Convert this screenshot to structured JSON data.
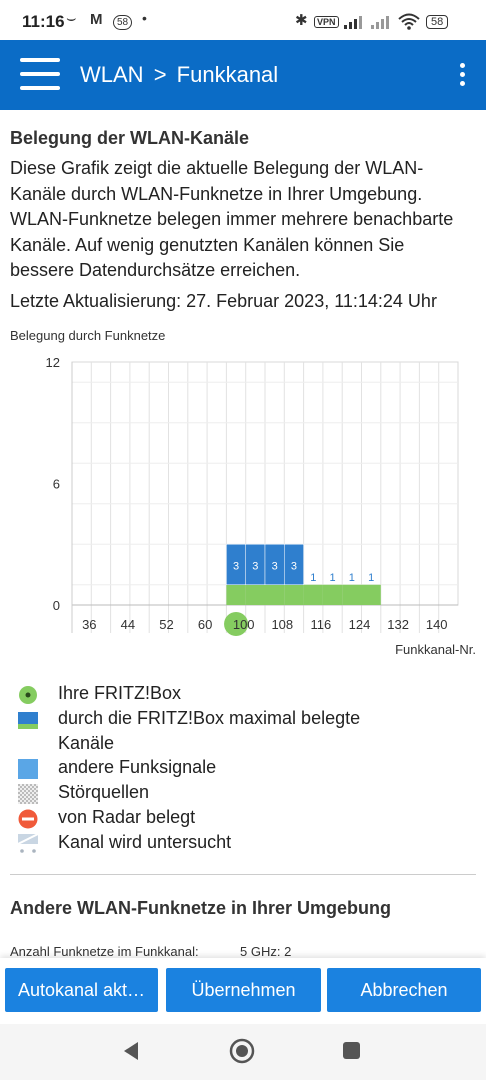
{
  "status_bar": {
    "time": "11:16",
    "badge": "58",
    "vpn": "VPN",
    "battery": "58"
  },
  "header": {
    "title": "WLAN",
    "subtitle": "Funkkanal",
    "separator": ">"
  },
  "section": {
    "heading": "Belegung der WLAN-Kanäle",
    "description_lines": [
      "Diese Grafik zeigt die aktuelle Belegung der WLAN-",
      "Kanäle durch WLAN-Funknetze in Ihrer Umgebung.",
      "WLAN-Funknetze belegen immer mehrere benachbarte",
      "Kanäle. Auf wenig genutzten Kanälen können Sie",
      "bessere Datendurchsätze erreichen."
    ],
    "last_update": "Letzte Aktualisierung: 27. Februar 2023, 11:14:24 Uhr",
    "chart_caption": "Belegung durch Funknetze"
  },
  "chart_data": {
    "type": "bar",
    "ylabel": "Belegung durch Funknetze",
    "xlabel": "Funkkanal-Nr.",
    "ylim": [
      0,
      12
    ],
    "y_ticks": [
      "0",
      "6",
      "12"
    ],
    "x_tick_labels": [
      "36",
      "44",
      "52",
      "60",
      "100",
      "108",
      "116",
      "124",
      "132",
      "140"
    ],
    "own_channel": "100",
    "series": [
      {
        "name": "andere Funksignale",
        "channels": [
          "100",
          "104",
          "108",
          "112"
        ],
        "values": [
          3,
          3,
          3,
          3
        ],
        "color": "#2f7fce"
      },
      {
        "name": "durch die FRITZ!Box maximal belegte Kanäle",
        "channels": [
          "100",
          "104",
          "108",
          "112",
          "116",
          "120",
          "124",
          "128"
        ],
        "values": [
          1,
          1,
          1,
          1,
          1,
          1,
          1,
          1
        ],
        "color": "#85cc60"
      }
    ],
    "data_labels": [
      {
        "channel": "100",
        "text": "3"
      },
      {
        "channel": "104",
        "text": "3"
      },
      {
        "channel": "108",
        "text": "3"
      },
      {
        "channel": "112",
        "text": "3"
      },
      {
        "channel": "116",
        "text": "1"
      },
      {
        "channel": "120",
        "text": "1"
      },
      {
        "channel": "124",
        "text": "1"
      },
      {
        "channel": "128",
        "text": "1"
      }
    ]
  },
  "legend": [
    {
      "label": "Ihre FRITZ!Box",
      "icon": "own-fritzbox-icon"
    },
    {
      "label": "durch die FRITZ!Box maximal belegte",
      "icon": "max-used-channels-icon"
    },
    {
      "label": "Kanäle",
      "icon": ""
    },
    {
      "label": "andere Funksignale",
      "icon": "other-signals-icon"
    },
    {
      "label": "Störquellen",
      "icon": "interference-icon"
    },
    {
      "label": "von Radar belegt",
      "icon": "radar-icon"
    },
    {
      "label": "Kanal wird untersucht",
      "icon": "channel-scan-icon"
    }
  ],
  "other_networks": {
    "heading": "Andere WLAN-Funknetze in Ihrer Umgebung",
    "count_label": "Anzahl Funknetze im Funkkanal:",
    "count_value": "5 GHz: 2"
  },
  "buttons": {
    "autochannel": "Autokanal akt…",
    "apply": "Übernehmen",
    "cancel": "Abbrechen"
  },
  "colors": {
    "primary": "#0b6cc6",
    "button": "#1b82e0",
    "green": "#85cc60",
    "blue": "#2f7fce",
    "radar": "#f05a3a"
  }
}
